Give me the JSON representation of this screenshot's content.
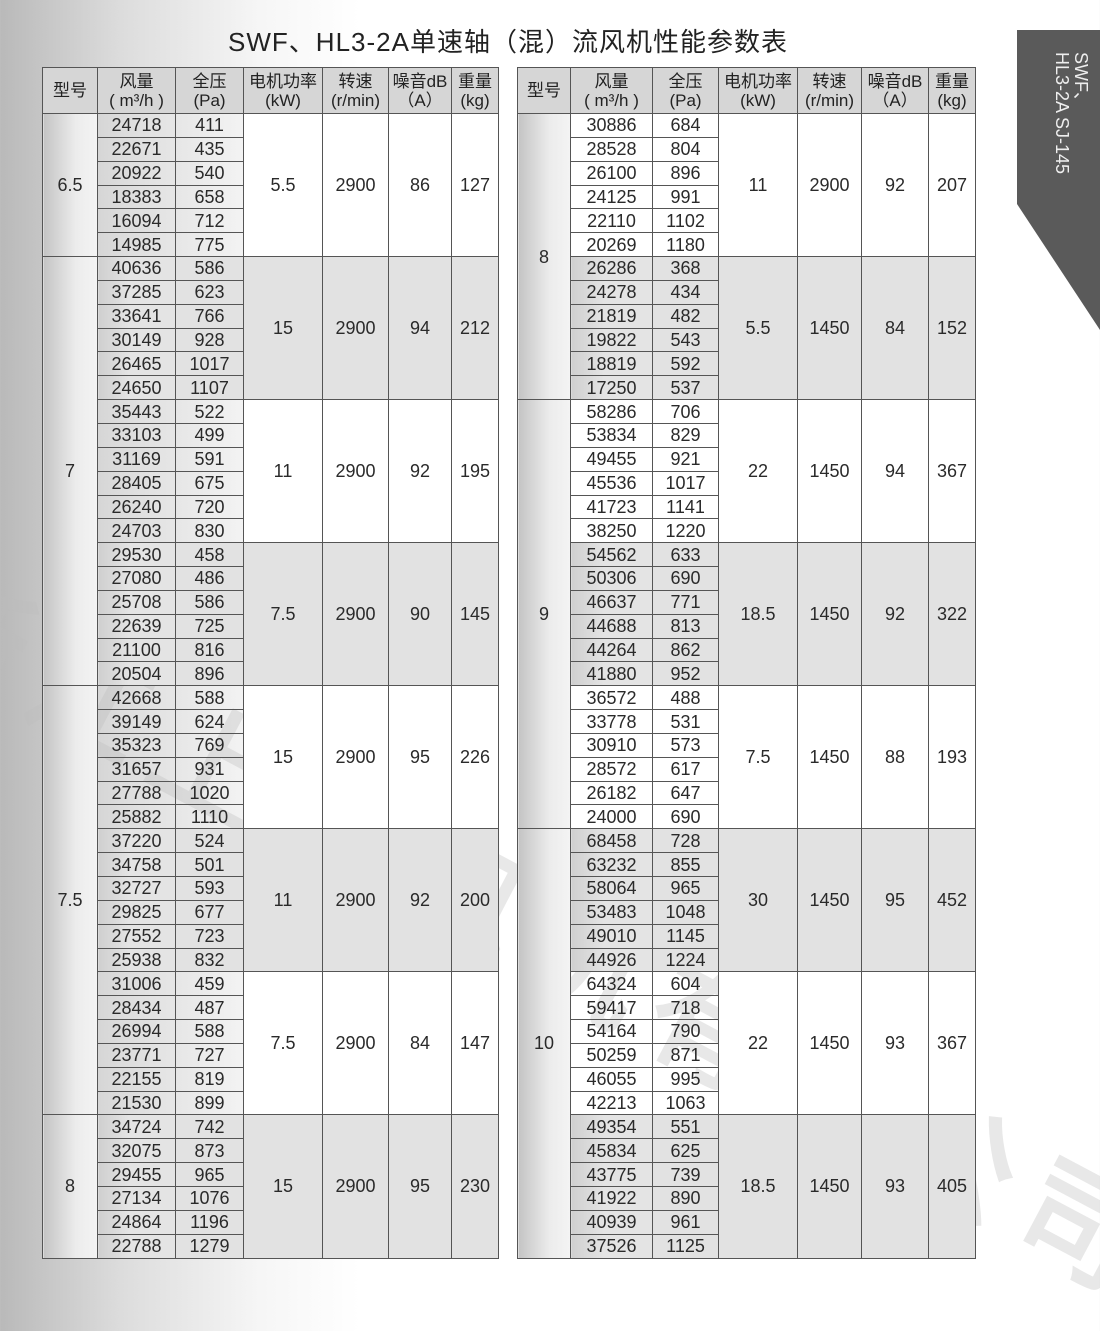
{
  "title": "SWF、HL3-2A单速轴（混）流风机性能参数表",
  "side_tab": {
    "line1": "SWF、",
    "line2": "HL3-2A  SJ-145"
  },
  "watermark": "浙江上建风机有限公司",
  "headers": [
    {
      "l1": "型号",
      "l2": ""
    },
    {
      "l1": "风量",
      "l2": "( m³/h )"
    },
    {
      "l1": "全压",
      "l2": "(Pa)"
    },
    {
      "l1": "电机功率",
      "l2": "(kW)"
    },
    {
      "l1": "转速",
      "l2": "(r/min)"
    },
    {
      "l1": "噪音dB",
      "l2": "（A）"
    },
    {
      "l1": "重量",
      "l2": "(kg)"
    }
  ],
  "tables": [
    {
      "groups": [
        {
          "model": "6.5",
          "blocks": [
            {
              "power": "5.5",
              "speed": "2900",
              "noise": "86",
              "weight": "127",
              "rows": [
                [
                  "24718",
                  "411"
                ],
                [
                  "22671",
                  "435"
                ],
                [
                  "20922",
                  "540"
                ],
                [
                  "18383",
                  "658"
                ],
                [
                  "16094",
                  "712"
                ],
                [
                  "14985",
                  "775"
                ]
              ]
            }
          ]
        },
        {
          "model": "7",
          "blocks": [
            {
              "power": "15",
              "speed": "2900",
              "noise": "94",
              "weight": "212",
              "rows": [
                [
                  "40636",
                  "586"
                ],
                [
                  "37285",
                  "623"
                ],
                [
                  "33641",
                  "766"
                ],
                [
                  "30149",
                  "928"
                ],
                [
                  "26465",
                  "1017"
                ],
                [
                  "24650",
                  "1107"
                ]
              ]
            },
            {
              "power": "11",
              "speed": "2900",
              "noise": "92",
              "weight": "195",
              "rows": [
                [
                  "35443",
                  "522"
                ],
                [
                  "33103",
                  "499"
                ],
                [
                  "31169",
                  "591"
                ],
                [
                  "28405",
                  "675"
                ],
                [
                  "26240",
                  "720"
                ],
                [
                  "24703",
                  "830"
                ]
              ]
            },
            {
              "power": "7.5",
              "speed": "2900",
              "noise": "90",
              "weight": "145",
              "rows": [
                [
                  "29530",
                  "458"
                ],
                [
                  "27080",
                  "486"
                ],
                [
                  "25708",
                  "586"
                ],
                [
                  "22639",
                  "725"
                ],
                [
                  "21100",
                  "816"
                ],
                [
                  "20504",
                  "896"
                ]
              ]
            }
          ]
        },
        {
          "model": "7.5",
          "blocks": [
            {
              "power": "15",
              "speed": "2900",
              "noise": "95",
              "weight": "226",
              "rows": [
                [
                  "42668",
                  "588"
                ],
                [
                  "39149",
                  "624"
                ],
                [
                  "35323",
                  "769"
                ],
                [
                  "31657",
                  "931"
                ],
                [
                  "27788",
                  "1020"
                ],
                [
                  "25882",
                  "1110"
                ]
              ]
            },
            {
              "power": "11",
              "speed": "2900",
              "noise": "92",
              "weight": "200",
              "rows": [
                [
                  "37220",
                  "524"
                ],
                [
                  "34758",
                  "501"
                ],
                [
                  "32727",
                  "593"
                ],
                [
                  "29825",
                  "677"
                ],
                [
                  "27552",
                  "723"
                ],
                [
                  "25938",
                  "832"
                ]
              ]
            },
            {
              "power": "7.5",
              "speed": "2900",
              "noise": "84",
              "weight": "147",
              "rows": [
                [
                  "31006",
                  "459"
                ],
                [
                  "28434",
                  "487"
                ],
                [
                  "26994",
                  "588"
                ],
                [
                  "23771",
                  "727"
                ],
                [
                  "22155",
                  "819"
                ],
                [
                  "21530",
                  "899"
                ]
              ]
            }
          ]
        },
        {
          "model": "8",
          "blocks": [
            {
              "power": "15",
              "speed": "2900",
              "noise": "95",
              "weight": "230",
              "rows": [
                [
                  "34724",
                  "742"
                ],
                [
                  "32075",
                  "873"
                ],
                [
                  "29455",
                  "965"
                ],
                [
                  "27134",
                  "1076"
                ],
                [
                  "24864",
                  "1196"
                ],
                [
                  "22788",
                  "1279"
                ]
              ]
            }
          ]
        }
      ]
    },
    {
      "groups": [
        {
          "model": "8",
          "blocks": [
            {
              "power": "11",
              "speed": "2900",
              "noise": "92",
              "weight": "207",
              "rows": [
                [
                  "30886",
                  "684"
                ],
                [
                  "28528",
                  "804"
                ],
                [
                  "26100",
                  "896"
                ],
                [
                  "24125",
                  "991"
                ],
                [
                  "22110",
                  "1102"
                ],
                [
                  "20269",
                  "1180"
                ]
              ]
            },
            {
              "power": "5.5",
              "speed": "1450",
              "noise": "84",
              "weight": "152",
              "rows": [
                [
                  "26286",
                  "368"
                ],
                [
                  "24278",
                  "434"
                ],
                [
                  "21819",
                  "482"
                ],
                [
                  "19822",
                  "543"
                ],
                [
                  "18819",
                  "592"
                ],
                [
                  "17250",
                  "537"
                ]
              ]
            }
          ]
        },
        {
          "model": "9",
          "blocks": [
            {
              "power": "22",
              "speed": "1450",
              "noise": "94",
              "weight": "367",
              "rows": [
                [
                  "58286",
                  "706"
                ],
                [
                  "53834",
                  "829"
                ],
                [
                  "49455",
                  "921"
                ],
                [
                  "45536",
                  "1017"
                ],
                [
                  "41723",
                  "1141"
                ],
                [
                  "38250",
                  "1220"
                ]
              ]
            },
            {
              "power": "18.5",
              "speed": "1450",
              "noise": "92",
              "weight": "322",
              "rows": [
                [
                  "54562",
                  "633"
                ],
                [
                  "50306",
                  "690"
                ],
                [
                  "46637",
                  "771"
                ],
                [
                  "44688",
                  "813"
                ],
                [
                  "44264",
                  "862"
                ],
                [
                  "41880",
                  "952"
                ]
              ]
            },
            {
              "power": "7.5",
              "speed": "1450",
              "noise": "88",
              "weight": "193",
              "rows": [
                [
                  "36572",
                  "488"
                ],
                [
                  "33778",
                  "531"
                ],
                [
                  "30910",
                  "573"
                ],
                [
                  "28572",
                  "617"
                ],
                [
                  "26182",
                  "647"
                ],
                [
                  "24000",
                  "690"
                ]
              ]
            }
          ]
        },
        {
          "model": "10",
          "blocks": [
            {
              "power": "30",
              "speed": "1450",
              "noise": "95",
              "weight": "452",
              "rows": [
                [
                  "68458",
                  "728"
                ],
                [
                  "63232",
                  "855"
                ],
                [
                  "58064",
                  "965"
                ],
                [
                  "53483",
                  "1048"
                ],
                [
                  "49010",
                  "1145"
                ],
                [
                  "44926",
                  "1224"
                ]
              ]
            },
            {
              "power": "22",
              "speed": "1450",
              "noise": "93",
              "weight": "367",
              "rows": [
                [
                  "64324",
                  "604"
                ],
                [
                  "59417",
                  "718"
                ],
                [
                  "54164",
                  "790"
                ],
                [
                  "50259",
                  "871"
                ],
                [
                  "46055",
                  "995"
                ],
                [
                  "42213",
                  "1063"
                ]
              ]
            },
            {
              "power": "18.5",
              "speed": "1450",
              "noise": "93",
              "weight": "405",
              "rows": [
                [
                  "49354",
                  "551"
                ],
                [
                  "45834",
                  "625"
                ],
                [
                  "43775",
                  "739"
                ],
                [
                  "41922",
                  "890"
                ],
                [
                  "40939",
                  "961"
                ],
                [
                  "37526",
                  "1125"
                ]
              ]
            }
          ]
        }
      ]
    }
  ]
}
